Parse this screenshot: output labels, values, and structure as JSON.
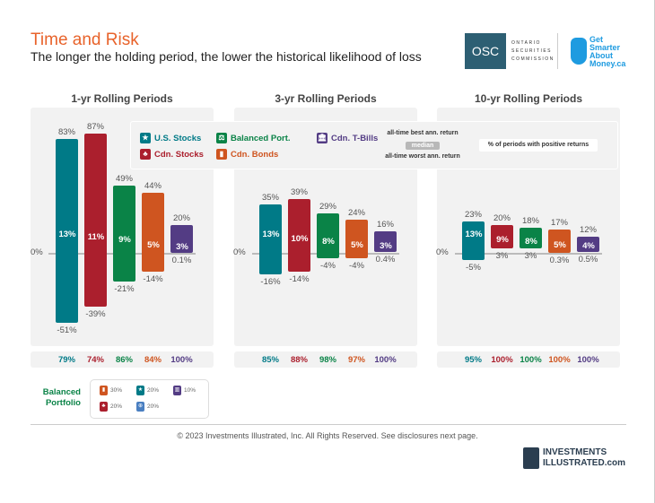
{
  "header": {
    "title": "Time and Risk",
    "subtitle": "The longer the holding period, the lower the historical likelihood of loss"
  },
  "logos": {
    "osc": "OSC",
    "osc_name": [
      "ONTARIO",
      "SECURITIES",
      "COMMISSION"
    ],
    "gsam": "Get Smarter About Money.ca"
  },
  "legend": {
    "items": [
      {
        "label": "U.S. Stocks",
        "icon": "star-icon"
      },
      {
        "label": "Cdn. Stocks",
        "icon": "maple-leaf-icon"
      },
      {
        "label": "Balanced Port.",
        "icon": "scale-icon"
      },
      {
        "label": "Cdn. Bonds",
        "icon": "bond-icon"
      },
      {
        "label": "Cdn. T-Bills",
        "icon": "bank-icon"
      }
    ],
    "best": "all-time best ann. return",
    "median": "median",
    "worst": "all-time worst ann. return",
    "positive": "% of periods with positive returns"
  },
  "colors": {
    "us": "#007a87",
    "cdn": "#ab1f2d",
    "bal": "#0a8347",
    "bonds": "#cf5520",
    "tbills": "#533c84",
    "title": "#e8632b"
  },
  "chart_data": {
    "type": "bar",
    "zero_label": "0%",
    "series_names": [
      "U.S. Stocks",
      "Cdn. Stocks",
      "Balanced Port.",
      "Cdn. Bonds",
      "Cdn. T-Bills"
    ],
    "panels": [
      {
        "title": "1-yr Rolling Periods",
        "best": [
          83,
          87,
          49,
          44,
          20
        ],
        "median": [
          13,
          11,
          9,
          5,
          3
        ],
        "worst": [
          -51,
          -39,
          -21,
          -14,
          0.1
        ],
        "positive": [
          79,
          74,
          86,
          84,
          100
        ]
      },
      {
        "title": "3-yr Rolling Periods",
        "best": [
          35,
          39,
          29,
          24,
          16
        ],
        "median": [
          13,
          10,
          8,
          5,
          3
        ],
        "worst": [
          -16,
          -14,
          -4,
          -4,
          0.4
        ],
        "positive": [
          85,
          88,
          98,
          97,
          100
        ]
      },
      {
        "title": "10-yr Rolling Periods",
        "best": [
          23,
          20,
          18,
          17,
          12
        ],
        "median": [
          13,
          9,
          8,
          5,
          4
        ],
        "worst": [
          -5,
          3,
          3,
          0.3,
          0.5
        ],
        "positive": [
          95,
          100,
          100,
          100,
          100
        ]
      }
    ]
  },
  "balanced_portfolio": {
    "label": "Balanced Portfolio",
    "items": [
      {
        "icon": "bond-icon",
        "pct": "30%"
      },
      {
        "icon": "star-icon",
        "pct": "20%"
      },
      {
        "icon": "bank-icon",
        "pct": "10%"
      },
      {
        "icon": "maple-leaf-icon",
        "pct": "20%"
      },
      {
        "icon": "globe-icon",
        "pct": "20%"
      }
    ]
  },
  "footer": {
    "copyright": "© 2023 Investments Illustrated, Inc. All Rights Reserved. See disclosures next page.",
    "logo": "INVESTMENTS ILLUSTRATED.com"
  }
}
